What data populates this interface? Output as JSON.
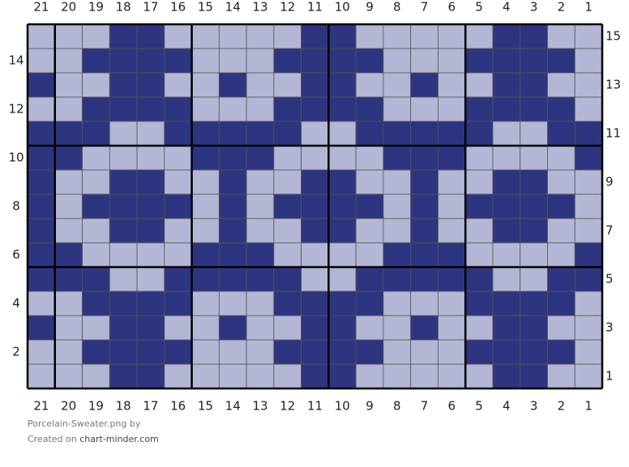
{
  "chart_title": "Porcelain-Sweater.png",
  "by": "by",
  "created_on": "Created on",
  "site": "chart-minder.com",
  "column_labels": [
    21,
    20,
    19,
    18,
    17,
    16,
    15,
    14,
    13,
    12,
    11,
    10,
    9,
    8,
    7,
    6,
    5,
    4,
    3,
    2,
    1
  ],
  "row_labels": [
    15,
    14,
    13,
    12,
    11,
    10,
    9,
    8,
    7,
    6,
    5,
    4,
    3,
    2,
    1
  ],
  "palette": [
    "#b4b6d6",
    "#2e3580"
  ],
  "cells": [
    [
      0,
      0,
      0,
      1,
      1,
      0,
      0,
      0,
      0,
      0,
      1,
      1,
      0,
      0,
      0,
      0,
      0,
      1,
      1,
      0,
      0
    ],
    [
      0,
      0,
      1,
      1,
      1,
      1,
      0,
      0,
      0,
      1,
      1,
      1,
      1,
      0,
      0,
      0,
      1,
      1,
      1,
      1,
      0
    ],
    [
      1,
      0,
      0,
      1,
      1,
      0,
      0,
      1,
      0,
      0,
      1,
      1,
      0,
      0,
      1,
      0,
      0,
      1,
      1,
      0,
      0
    ],
    [
      0,
      0,
      1,
      1,
      1,
      1,
      0,
      0,
      0,
      1,
      1,
      1,
      1,
      0,
      0,
      0,
      1,
      1,
      1,
      1,
      0
    ],
    [
      1,
      1,
      1,
      0,
      0,
      1,
      1,
      1,
      1,
      1,
      0,
      0,
      1,
      1,
      1,
      1,
      1,
      0,
      0,
      1,
      1
    ],
    [
      1,
      1,
      0,
      0,
      0,
      0,
      1,
      1,
      1,
      0,
      0,
      0,
      0,
      1,
      1,
      1,
      0,
      0,
      0,
      0,
      1
    ],
    [
      1,
      0,
      0,
      1,
      1,
      0,
      0,
      1,
      0,
      0,
      1,
      1,
      0,
      0,
      1,
      0,
      0,
      1,
      1,
      0,
      0
    ],
    [
      1,
      0,
      1,
      1,
      1,
      1,
      0,
      1,
      0,
      1,
      1,
      1,
      1,
      0,
      1,
      0,
      1,
      1,
      1,
      1,
      0
    ],
    [
      1,
      0,
      0,
      1,
      1,
      0,
      0,
      1,
      0,
      0,
      1,
      1,
      0,
      0,
      1,
      0,
      0,
      1,
      1,
      0,
      0
    ],
    [
      1,
      1,
      0,
      0,
      0,
      0,
      1,
      1,
      1,
      0,
      0,
      0,
      0,
      1,
      1,
      1,
      0,
      0,
      0,
      0,
      1
    ],
    [
      1,
      1,
      1,
      0,
      0,
      1,
      1,
      1,
      1,
      1,
      0,
      0,
      1,
      1,
      1,
      1,
      1,
      0,
      0,
      1,
      1
    ],
    [
      0,
      0,
      1,
      1,
      1,
      1,
      0,
      0,
      0,
      1,
      1,
      1,
      1,
      0,
      0,
      0,
      1,
      1,
      1,
      1,
      0
    ],
    [
      1,
      0,
      0,
      1,
      1,
      0,
      0,
      1,
      0,
      0,
      1,
      1,
      0,
      0,
      1,
      0,
      0,
      1,
      1,
      0,
      0
    ],
    [
      0,
      0,
      1,
      1,
      1,
      1,
      0,
      0,
      0,
      1,
      1,
      1,
      1,
      0,
      0,
      0,
      1,
      1,
      1,
      1,
      0
    ],
    [
      0,
      0,
      0,
      1,
      1,
      0,
      0,
      0,
      0,
      0,
      1,
      1,
      0,
      0,
      0,
      0,
      0,
      1,
      1,
      0,
      0
    ]
  ]
}
